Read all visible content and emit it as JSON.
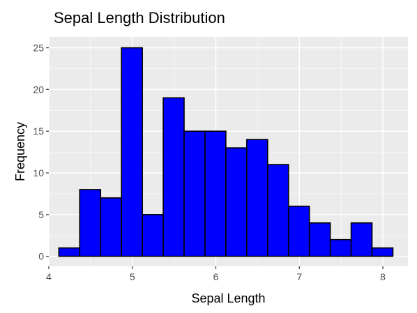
{
  "chart_data": {
    "type": "bar",
    "title": "Sepal Length Distribution",
    "xlabel": "Sepal Length",
    "ylabel": "Frequency",
    "xlim": [
      4.0,
      8.3
    ],
    "ylim": [
      -1.2,
      26.3
    ],
    "x_ticks": [
      4,
      5,
      6,
      7,
      8
    ],
    "x_tick_labels": [
      "4",
      "5",
      "6",
      "7",
      "8"
    ],
    "y_ticks": [
      0,
      5,
      10,
      15,
      20,
      25
    ],
    "y_tick_labels": [
      "0",
      "5",
      "10",
      "15",
      "20",
      "25"
    ],
    "bins": [
      {
        "x_start": 4.12,
        "x_end": 4.37,
        "count": 1
      },
      {
        "x_start": 4.37,
        "x_end": 4.62,
        "count": 8
      },
      {
        "x_start": 4.62,
        "x_end": 4.87,
        "count": 7
      },
      {
        "x_start": 4.87,
        "x_end": 5.12,
        "count": 25
      },
      {
        "x_start": 5.12,
        "x_end": 5.37,
        "count": 5
      },
      {
        "x_start": 5.37,
        "x_end": 5.62,
        "count": 19
      },
      {
        "x_start": 5.62,
        "x_end": 5.87,
        "count": 15
      },
      {
        "x_start": 5.87,
        "x_end": 6.12,
        "count": 15
      },
      {
        "x_start": 6.12,
        "x_end": 6.37,
        "count": 13
      },
      {
        "x_start": 6.37,
        "x_end": 6.62,
        "count": 14
      },
      {
        "x_start": 6.62,
        "x_end": 6.87,
        "count": 11
      },
      {
        "x_start": 6.87,
        "x_end": 7.12,
        "count": 6
      },
      {
        "x_start": 7.12,
        "x_end": 7.37,
        "count": 4
      },
      {
        "x_start": 7.37,
        "x_end": 7.62,
        "count": 2
      },
      {
        "x_start": 7.62,
        "x_end": 7.87,
        "count": 4
      },
      {
        "x_start": 7.87,
        "x_end": 8.12,
        "count": 1
      }
    ],
    "grid": true,
    "legend": "none"
  },
  "colors": {
    "panel_background": "#EBEBEB",
    "grid_major": "#FFFFFF",
    "bar_fill": "#0000FF",
    "bar_stroke": "#000000",
    "tick_label": "#4D4D4D",
    "axis_title": "#000000",
    "tick_mark": "#333333"
  }
}
